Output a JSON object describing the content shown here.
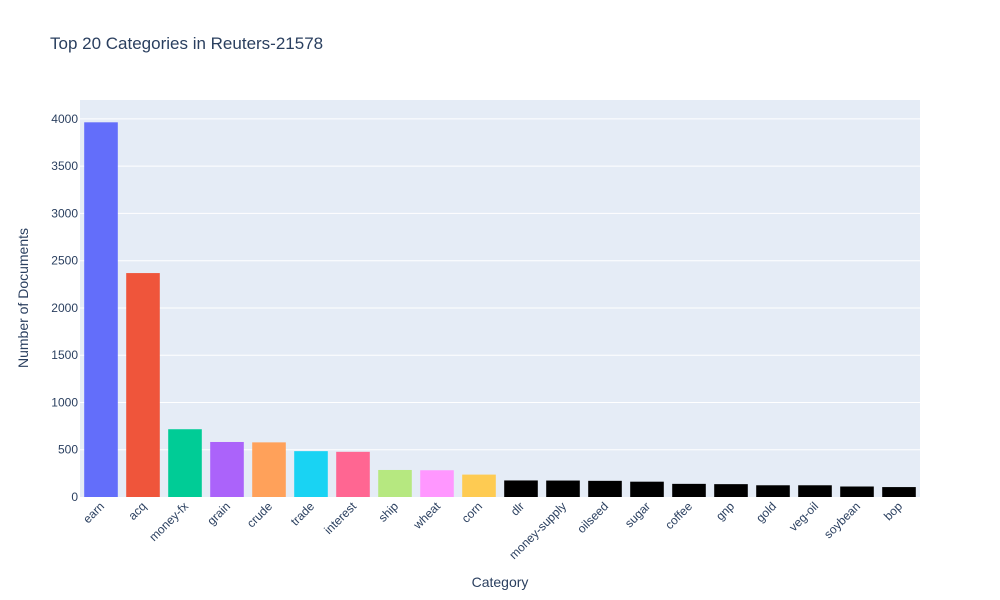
{
  "chart_data": {
    "type": "bar",
    "title": "Top 20 Categories in Reuters-21578",
    "xlabel": "Category",
    "ylabel": "Number of Documents",
    "ylim": [
      0,
      4200
    ],
    "yticks": [
      0,
      500,
      1000,
      1500,
      2000,
      2500,
      3000,
      3500,
      4000
    ],
    "grid": true,
    "plot_bg": "#e5ecf6",
    "categories": [
      "earn",
      "acq",
      "money-fx",
      "grain",
      "crude",
      "trade",
      "interest",
      "ship",
      "wheat",
      "corn",
      "dlr",
      "money-supply",
      "oilseed",
      "sugar",
      "coffee",
      "gnp",
      "gold",
      "veg-oil",
      "soybean",
      "bop"
    ],
    "values": [
      3964,
      2369,
      717,
      582,
      578,
      485,
      478,
      286,
      283,
      237,
      175,
      174,
      171,
      162,
      139,
      136,
      124,
      124,
      111,
      105
    ],
    "colors": [
      "#636efa",
      "#ef553b",
      "#00cc96",
      "#ab63fa",
      "#ffa15a",
      "#19d3f3",
      "#ff6692",
      "#b6e880",
      "#ff97ff",
      "#fecb52",
      "#000000",
      "#000000",
      "#000000",
      "#000000",
      "#000000",
      "#000000",
      "#000000",
      "#000000",
      "#000000",
      "#000000"
    ]
  }
}
